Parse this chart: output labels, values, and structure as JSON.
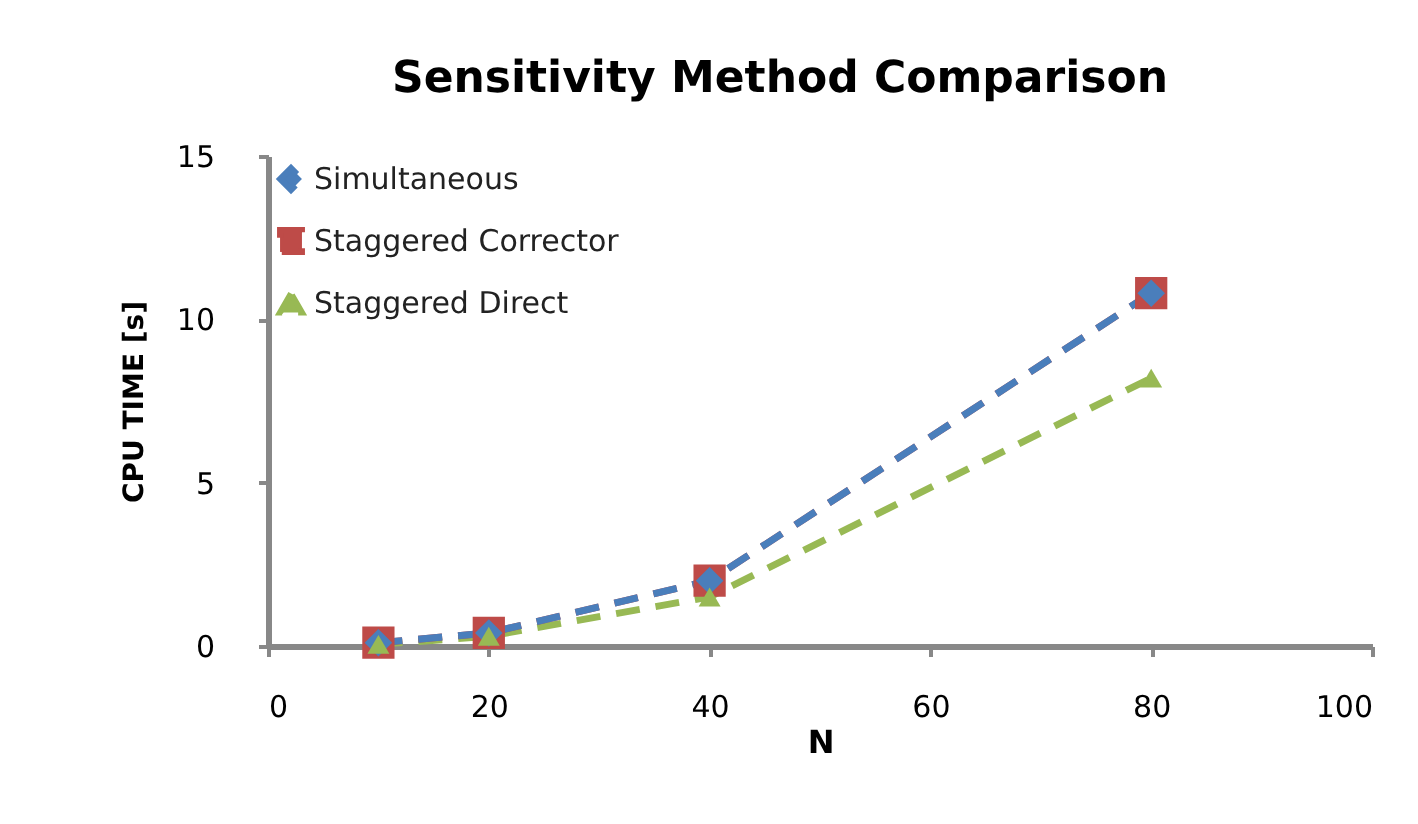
{
  "chart_data": {
    "type": "line",
    "title": "Sensitivity Method Comparison",
    "xlabel": "N",
    "ylabel": "CPU TIME  [s]",
    "x": [
      10,
      20,
      40,
      80
    ],
    "series": [
      {
        "name": "Simultaneous",
        "color": "#4a7ebb",
        "values": [
          0.1,
          0.4,
          2.0,
          10.8
        ],
        "marker": "diamond",
        "line_style": "dashed"
      },
      {
        "name": "Staggered Corrector",
        "color": "#be4b48",
        "values": [
          0.1,
          0.4,
          2.0,
          10.8
        ],
        "marker": "square",
        "line_style": "dashed"
      },
      {
        "name": "Staggered Direct",
        "color": "#98b954",
        "values": [
          0.05,
          0.3,
          1.5,
          8.2
        ],
        "marker": "triangle",
        "line_style": "dashed"
      }
    ],
    "xlim": [
      0,
      100
    ],
    "xticks": [
      0,
      20,
      40,
      60,
      80,
      100
    ],
    "ylim": [
      0,
      15
    ],
    "yticks": [
      0,
      5,
      10,
      15
    ],
    "grid": false,
    "legend": "top left"
  }
}
